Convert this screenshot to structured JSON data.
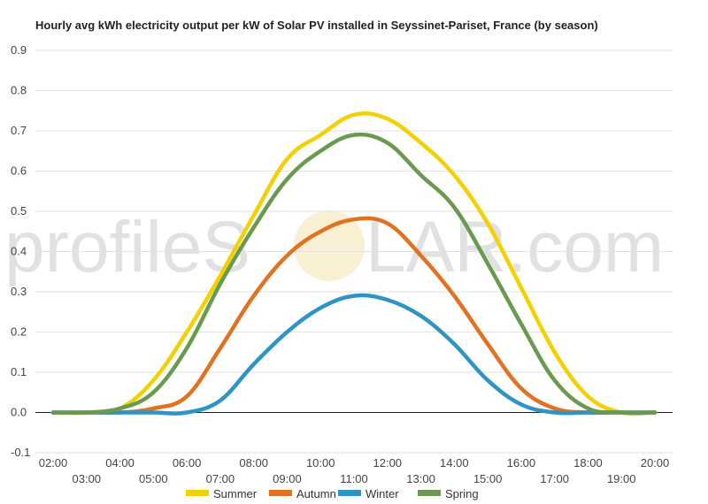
{
  "chart_data": {
    "type": "line",
    "title": "Hourly avg kWh electricity output per kW of Solar PV installed in Seyssinet-Pariset, France (by season)",
    "xlabel": "",
    "ylabel": "",
    "ylim": [
      -0.1,
      0.9
    ],
    "yticks": [
      "0.9",
      "0.8",
      "0.7",
      "0.6",
      "0.5",
      "0.4",
      "0.3",
      "0.2",
      "0.1",
      "0.0",
      "-0.1"
    ],
    "ytick_values": [
      0.9,
      0.8,
      0.7,
      0.6,
      0.5,
      0.4,
      0.3,
      0.2,
      0.1,
      0.0,
      -0.1
    ],
    "categories": [
      "02:00",
      "03:00",
      "04:00",
      "05:00",
      "06:00",
      "07:00",
      "08:00",
      "09:00",
      "10:00",
      "11:00",
      "12:00",
      "13:00",
      "14:00",
      "15:00",
      "16:00",
      "17:00",
      "18:00",
      "19:00",
      "20:00"
    ],
    "grid": true,
    "legend_position": "bottom",
    "series": [
      {
        "name": "Summer",
        "color": "#f5d000",
        "values": [
          0.0,
          0.0,
          0.01,
          0.08,
          0.2,
          0.34,
          0.49,
          0.63,
          0.69,
          0.74,
          0.73,
          0.67,
          0.59,
          0.47,
          0.31,
          0.15,
          0.04,
          0.0,
          0.0
        ]
      },
      {
        "name": "Autumn",
        "color": "#e07222",
        "values": [
          0.0,
          0.0,
          0.0,
          0.01,
          0.04,
          0.16,
          0.29,
          0.39,
          0.45,
          0.48,
          0.47,
          0.39,
          0.29,
          0.17,
          0.06,
          0.01,
          0.0,
          0.0,
          0.0
        ]
      },
      {
        "name": "Winter",
        "color": "#2e93c5",
        "values": [
          0.0,
          0.0,
          0.0,
          0.0,
          0.0,
          0.03,
          0.12,
          0.2,
          0.26,
          0.29,
          0.28,
          0.24,
          0.17,
          0.08,
          0.02,
          0.0,
          0.0,
          0.0,
          0.0
        ]
      },
      {
        "name": "Spring",
        "color": "#6a9a4f",
        "values": [
          0.0,
          0.0,
          0.01,
          0.05,
          0.16,
          0.32,
          0.46,
          0.58,
          0.65,
          0.69,
          0.67,
          0.59,
          0.51,
          0.37,
          0.22,
          0.08,
          0.01,
          0.0,
          0.0
        ]
      }
    ]
  },
  "watermark": {
    "text_left": "profileS",
    "text_right": "LAR.com"
  }
}
